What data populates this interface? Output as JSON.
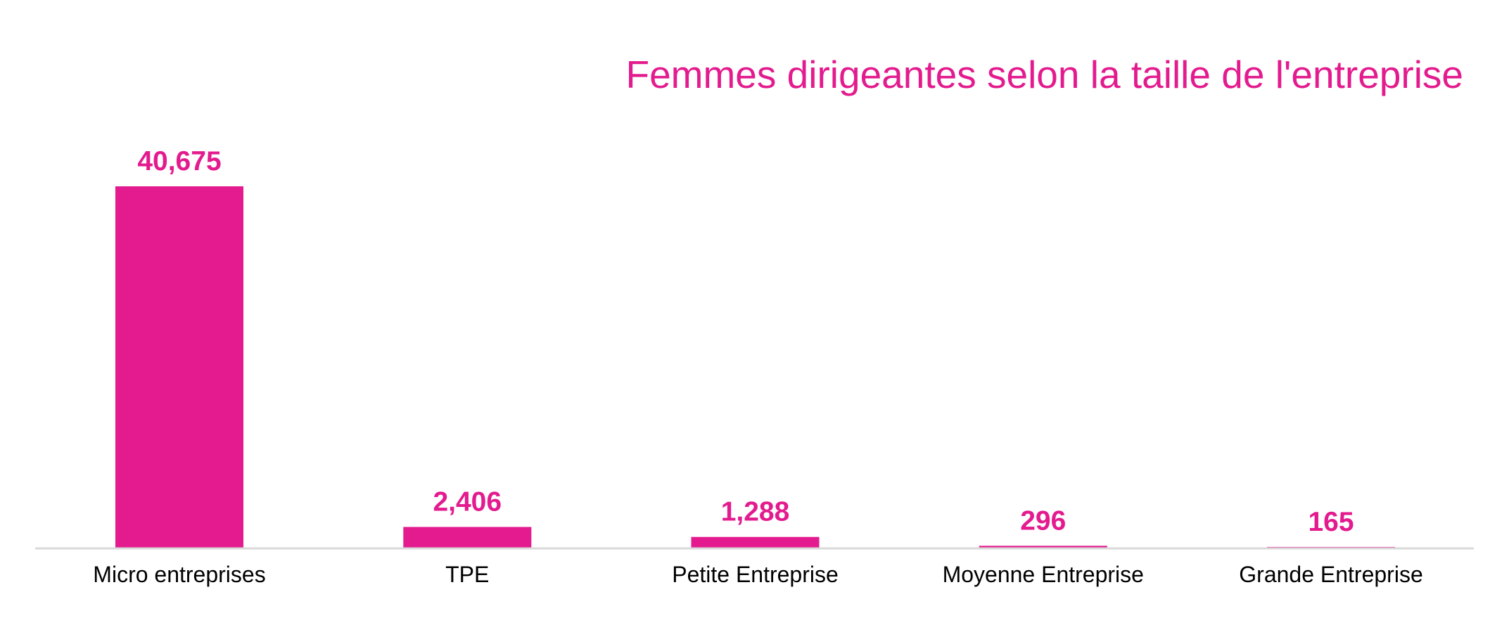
{
  "colors": {
    "accent": "#E31B8E",
    "axis": "#D9D9D9",
    "text": "#000000",
    "background": "#FFFFFF"
  },
  "chart_data": {
    "type": "bar",
    "title": "Femmes dirigeantes selon la taille de l'entreprise",
    "categories": [
      "Micro entreprises",
      "TPE",
      "Petite Entreprise",
      "Moyenne Entreprise",
      "Grande Entreprise"
    ],
    "values": [
      40675,
      2406,
      1288,
      296,
      165
    ],
    "value_labels": [
      "40,675",
      "2,406",
      "1,288",
      "296",
      "165"
    ],
    "xlabel": "",
    "ylabel": "",
    "ylim": [
      0,
      40675
    ],
    "grid": false,
    "legend": "none"
  }
}
